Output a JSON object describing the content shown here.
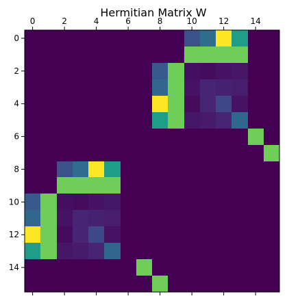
{
  "chart_data": {
    "type": "heatmap",
    "title": "Hermitian Matrix W",
    "xlabel": "",
    "ylabel": "",
    "rows": 16,
    "cols": 16,
    "colormap": "viridis",
    "x_ticks": [
      0,
      2,
      4,
      6,
      8,
      10,
      12,
      14
    ],
    "y_ticks": [
      0,
      2,
      4,
      6,
      8,
      10,
      12,
      14
    ],
    "x_tick_labels": [
      "0",
      "2",
      "4",
      "6",
      "8",
      "10",
      "12",
      "14"
    ],
    "y_tick_labels": [
      "0",
      "2",
      "4",
      "6",
      "8",
      "10",
      "12",
      "14"
    ],
    "x_axis_position": "top",
    "values": [
      [
        0,
        0,
        0,
        0,
        0,
        0,
        0,
        0,
        0,
        0,
        0.25,
        0.35,
        1.0,
        0.55,
        0,
        0
      ],
      [
        0,
        0,
        0,
        0,
        0,
        0,
        0,
        0,
        0,
        0,
        0.78,
        0.78,
        0.78,
        0.78,
        0,
        0
      ],
      [
        0,
        0,
        0,
        0,
        0,
        0,
        0,
        0,
        0.28,
        0.78,
        0.04,
        0.03,
        0.05,
        0.06,
        0,
        0
      ],
      [
        0,
        0,
        0,
        0,
        0,
        0,
        0,
        0,
        0.33,
        0.78,
        0.05,
        0.1,
        0.09,
        0.08,
        0,
        0
      ],
      [
        0,
        0,
        0,
        0,
        0,
        0,
        0,
        0,
        1.0,
        0.78,
        0.03,
        0.1,
        0.22,
        0.05,
        0,
        0
      ],
      [
        0,
        0,
        0,
        0,
        0,
        0,
        0,
        0,
        0.55,
        0.78,
        0.06,
        0.07,
        0.1,
        0.33,
        0,
        0
      ],
      [
        0,
        0,
        0,
        0,
        0,
        0,
        0,
        0,
        0,
        0,
        0,
        0,
        0,
        0,
        0.78,
        0
      ],
      [
        0,
        0,
        0,
        0,
        0,
        0,
        0,
        0,
        0,
        0,
        0,
        0,
        0,
        0,
        0,
        0.78
      ],
      [
        0,
        0,
        0.25,
        0.35,
        1.0,
        0.55,
        0,
        0,
        0,
        0,
        0,
        0,
        0,
        0,
        0,
        0
      ],
      [
        0,
        0,
        0.78,
        0.78,
        0.78,
        0.78,
        0,
        0,
        0,
        0,
        0,
        0,
        0,
        0,
        0,
        0
      ],
      [
        0.28,
        0.78,
        0.04,
        0.03,
        0.05,
        0.06,
        0,
        0,
        0,
        0,
        0,
        0,
        0,
        0,
        0,
        0
      ],
      [
        0.33,
        0.78,
        0.05,
        0.1,
        0.09,
        0.08,
        0,
        0,
        0,
        0,
        0,
        0,
        0,
        0,
        0,
        0
      ],
      [
        1.0,
        0.78,
        0.03,
        0.1,
        0.22,
        0.05,
        0,
        0,
        0,
        0,
        0,
        0,
        0,
        0,
        0,
        0
      ],
      [
        0.55,
        0.78,
        0.06,
        0.07,
        0.1,
        0.33,
        0,
        0,
        0,
        0,
        0,
        0,
        0,
        0,
        0,
        0
      ],
      [
        0,
        0,
        0,
        0,
        0,
        0,
        0,
        0.78,
        0,
        0,
        0,
        0,
        0,
        0,
        0,
        0
      ],
      [
        0,
        0,
        0,
        0,
        0,
        0,
        0,
        0,
        0.78,
        0,
        0,
        0,
        0,
        0,
        0,
        0
      ]
    ],
    "value_range": [
      0,
      1
    ],
    "grid": false,
    "legend": "none",
    "colors": {
      "viridis_stops": [
        "#440154",
        "#482878",
        "#3e4989",
        "#31688e",
        "#26828e",
        "#1f9e89",
        "#35b779",
        "#6ece58",
        "#b5de2b",
        "#fde725"
      ]
    }
  }
}
